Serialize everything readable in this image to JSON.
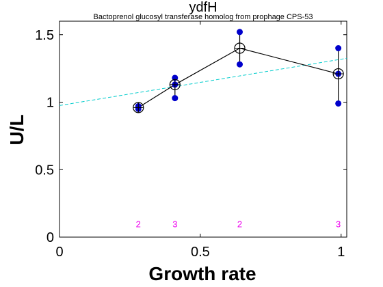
{
  "chart_data": {
    "type": "scatter",
    "title": "ydfH",
    "subtitle": "Bactoprenol glucosyl transferase homolog from prophage CPS-53",
    "xlabel": "Growth rate",
    "ylabel": "U/L",
    "xlim": [
      0,
      1.02
    ],
    "ylim": [
      0,
      1.6
    ],
    "xticks": [
      0,
      0.5,
      1
    ],
    "xtick_labels": [
      "0",
      "0.5",
      "1"
    ],
    "yticks": [
      0,
      0.5,
      1,
      1.5
    ],
    "ytick_labels": [
      "0",
      "0.5",
      "1",
      "1.5"
    ],
    "grid": false,
    "raw_points": {
      "x": [
        0.28,
        0.28,
        0.41,
        0.41,
        0.41,
        0.64,
        0.64,
        0.99,
        0.99,
        0.99
      ],
      "y": [
        0.95,
        0.97,
        1.03,
        1.13,
        1.18,
        1.28,
        1.52,
        0.99,
        1.21,
        1.4
      ],
      "color": "#0000cc"
    },
    "mean_line": {
      "x": [
        0.28,
        0.41,
        0.64,
        0.99
      ],
      "y": [
        0.96,
        1.13,
        1.4,
        1.21
      ],
      "error_low": [
        0.95,
        1.03,
        1.28,
        0.99
      ],
      "error_high": [
        0.97,
        1.18,
        1.52,
        1.4
      ],
      "color": "#000000"
    },
    "fit_line": {
      "x": [
        0,
        1.02
      ],
      "y": [
        0.975,
        1.325
      ],
      "color": "#00cccc",
      "style": "dashed"
    },
    "counts": {
      "x": [
        0.28,
        0.41,
        0.64,
        0.99
      ],
      "labels": [
        "2",
        "3",
        "2",
        "3"
      ],
      "y": 0.1,
      "color": "#ee00ee"
    }
  }
}
